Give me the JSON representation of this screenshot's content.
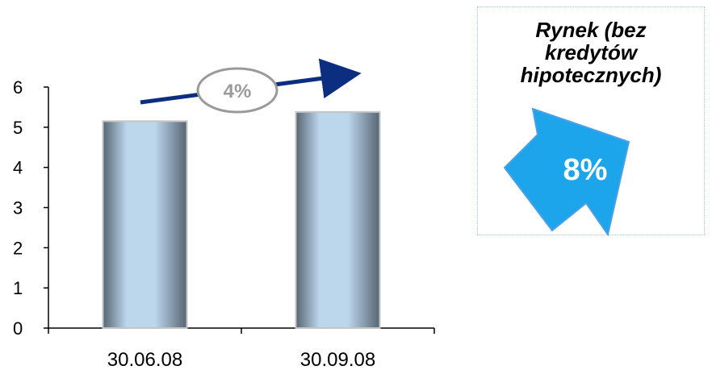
{
  "chart_data": {
    "type": "bar",
    "categories": [
      "30.06.08",
      "30.09.08"
    ],
    "values": [
      5.15,
      5.38
    ],
    "ylim": [
      0,
      6
    ],
    "yticks": [
      0,
      1,
      2,
      3,
      4,
      5,
      6
    ],
    "grid": false,
    "title": "",
    "xlabel": "",
    "ylabel": "",
    "annotations": {
      "growth_label": "4%"
    }
  },
  "market_box": {
    "title_lines": [
      "Rynek (bez",
      "kredytów",
      "hipotecznych)"
    ],
    "value": "8%"
  },
  "colors": {
    "bar_edge": "#566573",
    "bar_center": "#bcd6ec",
    "bar_outline": "#c4c4c4",
    "growth_arrow": "#0b2e80",
    "growth_ellipse": "#9a9a9a",
    "market_arrow_fill": "#1da5ec",
    "market_arrow_stroke": "#4aa0e8",
    "axis": "#000000"
  }
}
